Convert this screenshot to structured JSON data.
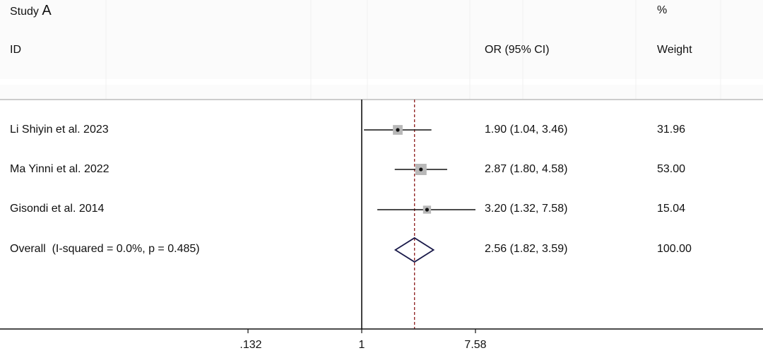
{
  "header": {
    "study_label": "Study",
    "panel_letter": "A",
    "id_label": "ID",
    "or_label": "OR (95% CI)",
    "pct_label": "%",
    "weight_label": "Weight"
  },
  "chart_data": {
    "type": "forest",
    "title": "",
    "xlabel": "",
    "ylabel": "",
    "x_scale": "log",
    "xlim": [
      0.132,
      7.58
    ],
    "reference_value": 1,
    "pooled_estimate": 2.56,
    "xticks": [
      {
        "value": 0.132,
        "label": ".132"
      },
      {
        "value": 1,
        "label": "1"
      },
      {
        "value": 7.58,
        "label": "7.58"
      }
    ],
    "studies": [
      {
        "name": "Li Shiyin et al. 2023",
        "or": 1.9,
        "lo": 1.04,
        "hi": 3.46,
        "or_text": "1.90 (1.04, 3.46)",
        "weight": "31.96"
      },
      {
        "name": "Ma Yinni et al. 2022",
        "or": 2.87,
        "lo": 1.8,
        "hi": 4.58,
        "or_text": "2.87 (1.80, 4.58)",
        "weight": "53.00"
      },
      {
        "name": "Gisondi et al. 2014",
        "or": 3.2,
        "lo": 1.32,
        "hi": 7.58,
        "or_text": "3.20 (1.32, 7.58)",
        "weight": "15.04"
      }
    ],
    "overall": {
      "name": "Overall  (I-squared = 0.0%, p = 0.485)",
      "or": 2.56,
      "lo": 1.82,
      "hi": 3.59,
      "or_text": "2.56 (1.82, 3.59)",
      "weight": "100.00"
    },
    "grid": false,
    "colors": {
      "marker_box": "#b8b8b8",
      "diamond": "#1a1a4a",
      "pooled_line": "#8b1a1a",
      "axis": "#111111"
    }
  }
}
